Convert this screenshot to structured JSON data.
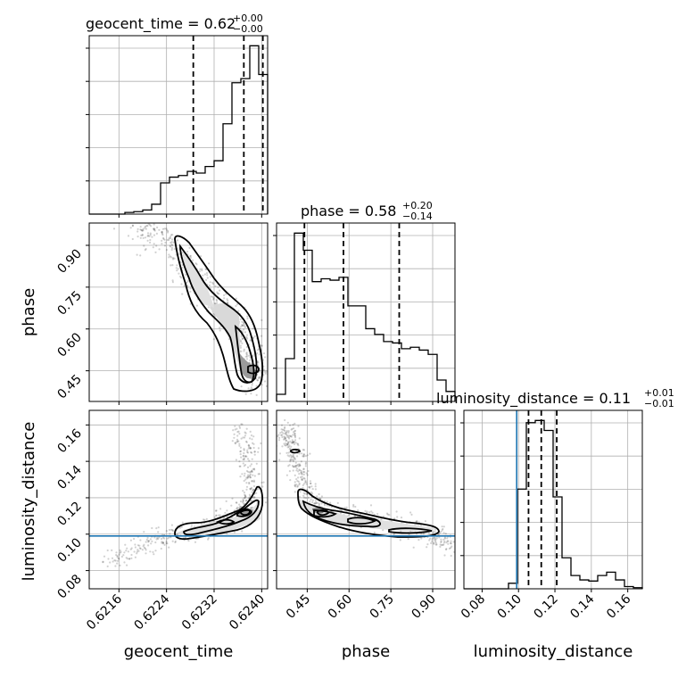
{
  "chart_data": {
    "type": "corner",
    "parameters": [
      {
        "name": "geocent_time",
        "title_value": "0.62",
        "err_plus": "+0.00",
        "err_minus": "−0.00",
        "range": [
          0.6211,
          0.6241
        ],
        "ticks": [
          0.6216,
          0.6224,
          0.6232,
          0.624
        ],
        "tick_labels": [
          "0.6216",
          "0.6224",
          "0.6232",
          "0.6240"
        ],
        "quantiles": [
          0.62285,
          0.6237,
          0.62402
        ],
        "bins": [
          0.6211,
          0.62125,
          0.6214,
          0.62155,
          0.6217,
          0.62185,
          0.622,
          0.62215,
          0.6223,
          0.62245,
          0.6226,
          0.62275,
          0.6229,
          0.62305,
          0.6232,
          0.62335,
          0.6235,
          0.62365,
          0.6238,
          0.62395,
          0.6241
        ],
        "counts": [
          0,
          0,
          0,
          0,
          2,
          3,
          5,
          12,
          38,
          45,
          47,
          52,
          50,
          58,
          65,
          110,
          160,
          165,
          205,
          170
        ]
      },
      {
        "name": "phase",
        "title_value": "0.58",
        "err_plus": "+0.20",
        "err_minus": "−0.14",
        "range": [
          0.34,
          0.98
        ],
        "ticks": [
          0.45,
          0.6,
          0.75,
          0.9
        ],
        "tick_labels": [
          "0.45",
          "0.60",
          "0.75",
          "0.90"
        ],
        "quantiles": [
          0.44,
          0.58,
          0.78
        ],
        "bins": [
          0.34,
          0.372,
          0.404,
          0.436,
          0.468,
          0.5,
          0.532,
          0.564,
          0.596,
          0.628,
          0.66,
          0.692,
          0.724,
          0.756,
          0.788,
          0.82,
          0.852,
          0.884,
          0.916,
          0.948,
          0.98
        ],
        "counts": [
          5,
          30,
          118,
          106,
          84,
          86,
          85,
          87,
          67,
          67,
          51,
          47,
          42,
          41,
          37,
          38,
          36,
          33,
          15,
          7
        ]
      },
      {
        "name": "luminosity_distance",
        "title_value": "0.11",
        "err_plus": "+0.01",
        "err_minus": "−0.01",
        "range": [
          0.07,
          0.168
        ],
        "ticks": [
          0.08,
          0.1,
          0.12,
          0.14,
          0.16
        ],
        "tick_labels": [
          "0.08",
          "0.10",
          "0.12",
          "0.14",
          "0.16"
        ],
        "truth": 0.099,
        "quantiles": [
          0.1055,
          0.1125,
          0.121
        ],
        "bins": [
          0.07,
          0.0749,
          0.0798,
          0.0847,
          0.0896,
          0.0945,
          0.0994,
          0.1043,
          0.1092,
          0.1141,
          0.119,
          0.1239,
          0.1288,
          0.1337,
          0.1386,
          0.1435,
          0.1484,
          0.1533,
          0.1582,
          0.1631,
          0.168
        ],
        "counts": [
          0,
          0,
          0,
          0,
          0,
          5,
          90,
          150,
          152,
          143,
          83,
          28,
          12,
          8,
          7,
          12,
          15,
          8,
          2,
          1
        ]
      }
    ]
  }
}
